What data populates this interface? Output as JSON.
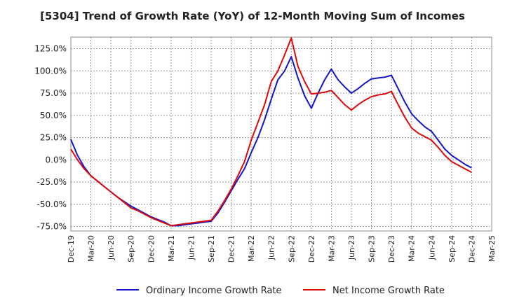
{
  "chart_data": {
    "type": "line",
    "title": "[5304]  Trend of Growth Rate (YoY) of 12-Month Moving Sum of Incomes",
    "xlabel": "",
    "ylabel": "",
    "x_tick_labels": [
      "Dec-19",
      "Mar-20",
      "Jun-20",
      "Sep-20",
      "Dec-20",
      "Mar-21",
      "Jun-21",
      "Sep-21",
      "Dec-21",
      "Mar-22",
      "Jun-22",
      "Sep-22",
      "Dec-22",
      "Mar-23",
      "Jun-23",
      "Sep-23",
      "Dec-23",
      "Mar-24",
      "Jun-24",
      "Sep-24",
      "Dec-24",
      "Mar-25"
    ],
    "y_tick_labels": [
      "125.0%",
      "100.0%",
      "75.0%",
      "50.0%",
      "25.0%",
      "0.0%",
      "-25.0%",
      "-50.0%",
      "-75.0%"
    ],
    "y_ticks": [
      125,
      100,
      75,
      50,
      25,
      0,
      -25,
      -50,
      -75
    ],
    "ylim": [
      -80,
      138
    ],
    "grid": true,
    "legend_position": "bottom",
    "x": [
      "Dec-19",
      "Jan-20",
      "Feb-20",
      "Mar-20",
      "Apr-20",
      "May-20",
      "Jun-20",
      "Jul-20",
      "Aug-20",
      "Sep-20",
      "Oct-20",
      "Nov-20",
      "Dec-20",
      "Jan-21",
      "Feb-21",
      "Mar-21",
      "Apr-21",
      "May-21",
      "Jun-21",
      "Jul-21",
      "Aug-21",
      "Sep-21",
      "Oct-21",
      "Nov-21",
      "Dec-21",
      "Jan-22",
      "Feb-22",
      "Mar-22",
      "Apr-22",
      "May-22",
      "Jun-22",
      "Jul-22",
      "Aug-22",
      "Sep-22",
      "Oct-22",
      "Nov-22",
      "Dec-22",
      "Jan-23",
      "Feb-23",
      "Mar-23",
      "Apr-23",
      "May-23",
      "Jun-23",
      "Jul-23",
      "Aug-23",
      "Sep-23",
      "Oct-23",
      "Nov-23",
      "Dec-23",
      "Jan-24",
      "Feb-24",
      "Mar-24",
      "Apr-24",
      "May-24",
      "Jun-24",
      "Jul-24",
      "Aug-24",
      "Sep-24",
      "Oct-24",
      "Nov-24",
      "Dec-24"
    ],
    "series": [
      {
        "name": "Ordinary Income Growth Rate",
        "color": "#1414c8",
        "values": [
          23,
          5,
          -8,
          -18,
          -24,
          -30,
          -36,
          -42,
          -47,
          -52,
          -56,
          -60,
          -64,
          -67,
          -70,
          -74,
          -74,
          -73,
          -72,
          -71,
          -70,
          -69,
          -60,
          -48,
          -35,
          -22,
          -10,
          8,
          25,
          45,
          68,
          90,
          100,
          116,
          92,
          72,
          58,
          75,
          90,
          102,
          90,
          82,
          75,
          80,
          86,
          91,
          92,
          93,
          95,
          80,
          65,
          52,
          44,
          37,
          32,
          22,
          12,
          5,
          0,
          -5,
          -9
        ]
      },
      {
        "name": "Net Income Growth Rate",
        "color": "#dc0a0a",
        "values": [
          12,
          0,
          -10,
          -18,
          -24,
          -30,
          -36,
          -42,
          -48,
          -54,
          -57,
          -61,
          -65,
          -68,
          -71,
          -74,
          -73,
          -72,
          -71,
          -70,
          -69,
          -68,
          -58,
          -46,
          -33,
          -18,
          -2,
          22,
          42,
          62,
          88,
          100,
          118,
          137,
          105,
          88,
          74,
          75,
          76,
          78,
          70,
          62,
          56,
          62,
          67,
          71,
          73,
          74,
          77,
          62,
          48,
          36,
          30,
          26,
          22,
          14,
          5,
          -2,
          -6,
          -10,
          -14
        ]
      }
    ]
  }
}
